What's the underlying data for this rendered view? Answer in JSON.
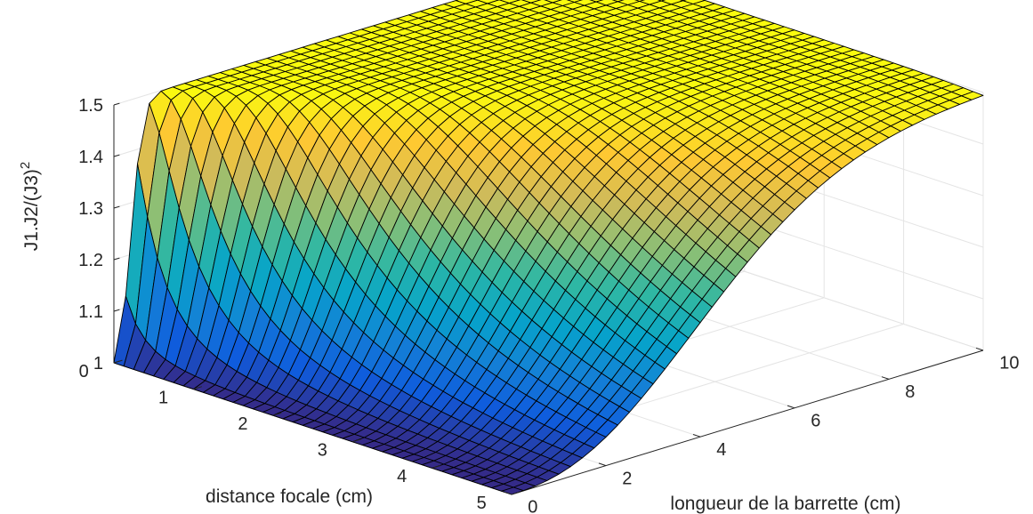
{
  "chart_data": {
    "type": "surface",
    "title": "",
    "xlabel": "distance focale (cm)",
    "ylabel": "longueur de la barrette (cm)",
    "zlabel": "J1.J2/(J3)",
    "zlabel_superscript": "2",
    "xlim": [
      0,
      5
    ],
    "ylim": [
      0,
      10
    ],
    "zlim": [
      1,
      1.5
    ],
    "xticks": [
      "0",
      "1",
      "2",
      "3",
      "4",
      "5"
    ],
    "yticks": [
      "0",
      "2",
      "4",
      "6",
      "8",
      "10"
    ],
    "zticks": [
      "1",
      "1.1",
      "1.2",
      "1.3",
      "1.4",
      "1.5"
    ],
    "grid": true,
    "colormap": "parula",
    "colormap_colors": [
      "#352a87",
      "#0f5cdd",
      "#1481d6",
      "#06a4ca",
      "#2eb7a4",
      "#87bf77",
      "#d1bb59",
      "#fec832",
      "#f9fb0e"
    ],
    "grid_size": {
      "x_points": 40,
      "y_points": 40
    },
    "surface_profile": {
      "peak_value": 1.5,
      "base_value": 1.0,
      "plateau_at_x_min": 1.46,
      "ridge_description": "J1.J2/(J3)^2 rises toward 1.5 for short focal distance and long bar length, falling to 1 at large focal distance or zero bar length"
    }
  }
}
